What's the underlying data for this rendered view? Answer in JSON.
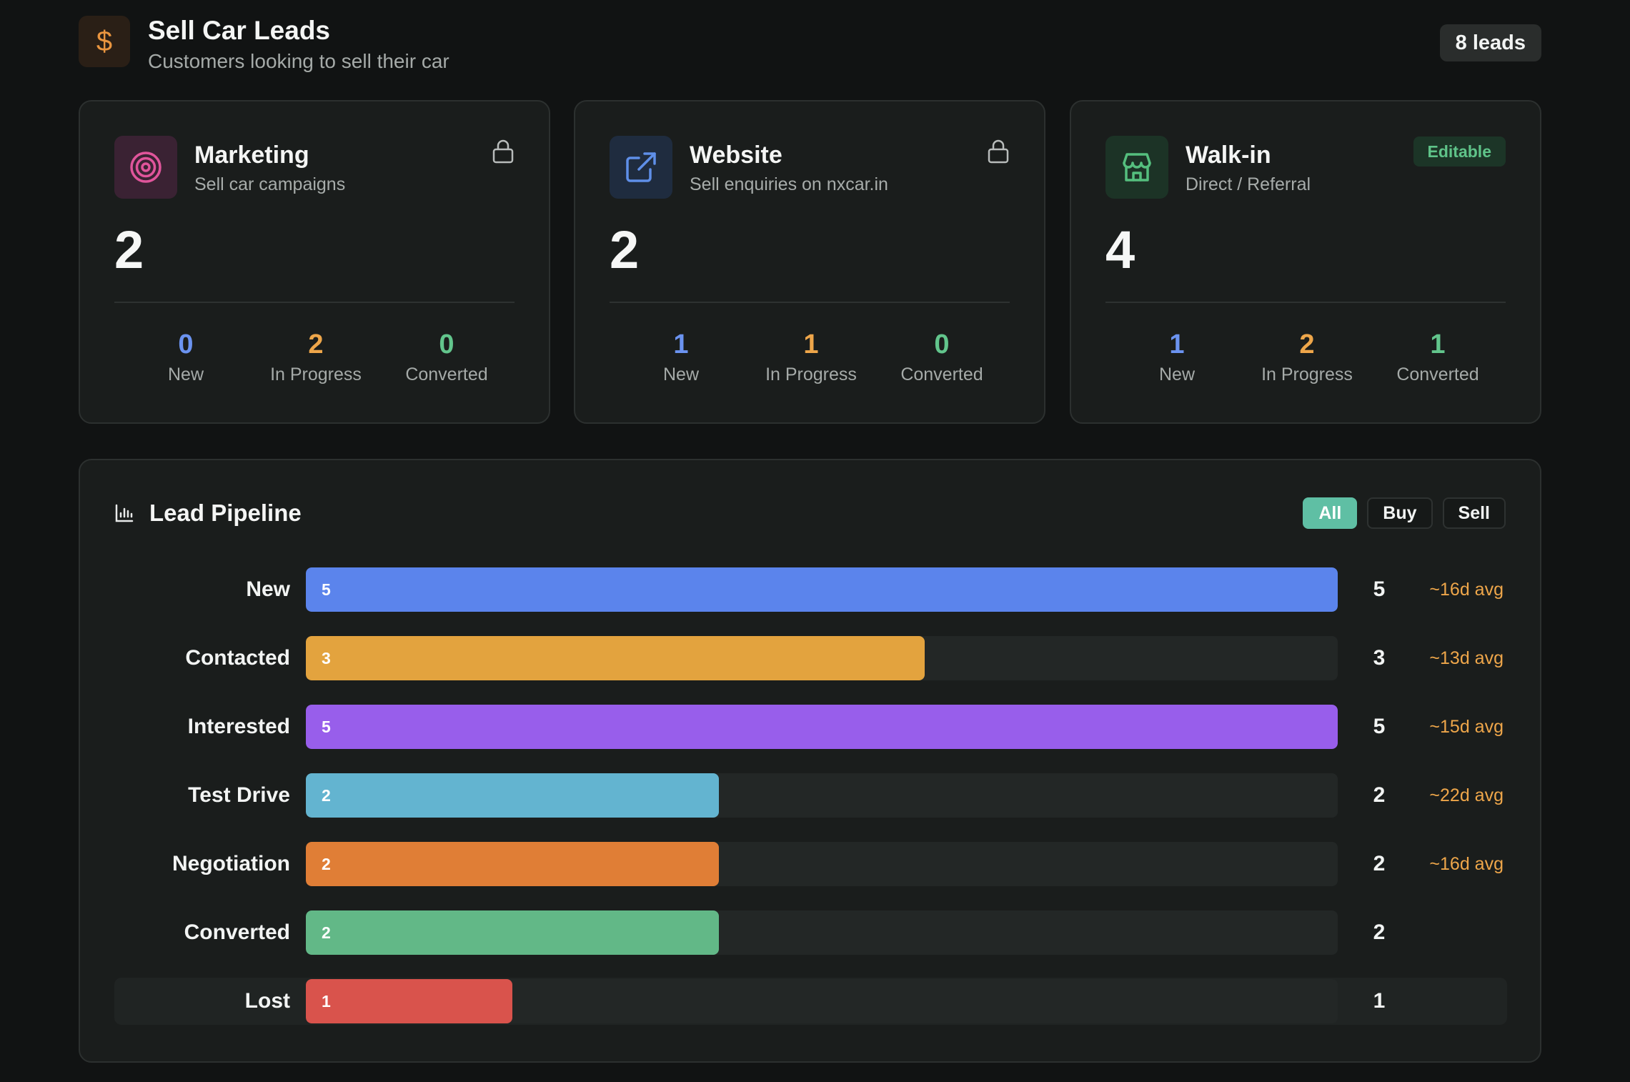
{
  "header": {
    "icon": "dollar-icon",
    "title": "Sell Car Leads",
    "subtitle": "Customers looking to sell their car",
    "leads_badge": "8 leads"
  },
  "sources": [
    {
      "name": "Marketing",
      "description": "Sell car campaigns",
      "icon": "target-icon",
      "locked": true,
      "total": "2",
      "stats": [
        {
          "value": "0",
          "label": "New"
        },
        {
          "value": "2",
          "label": "In Progress"
        },
        {
          "value": "0",
          "label": "Converted"
        }
      ]
    },
    {
      "name": "Website",
      "description": "Sell enquiries on nxcar.in",
      "icon": "external-link-icon",
      "locked": true,
      "total": "2",
      "stats": [
        {
          "value": "1",
          "label": "New"
        },
        {
          "value": "1",
          "label": "In Progress"
        },
        {
          "value": "0",
          "label": "Converted"
        }
      ]
    },
    {
      "name": "Walk-in",
      "description": "Direct / Referral",
      "icon": "store-icon",
      "badge": "Editable",
      "total": "4",
      "stats": [
        {
          "value": "1",
          "label": "New"
        },
        {
          "value": "2",
          "label": "In Progress"
        },
        {
          "value": "1",
          "label": "Converted"
        }
      ]
    }
  ],
  "pipeline": {
    "title": "Lead Pipeline",
    "icon": "bar-chart-icon",
    "filters": [
      "All",
      "Buy",
      "Sell"
    ],
    "active_filter": "All",
    "max": 5,
    "stages": [
      {
        "label": "New",
        "value": "5",
        "avg": "~16d avg",
        "color": "#5b84ec"
      },
      {
        "label": "Contacted",
        "value": "3",
        "avg": "~13d avg",
        "color": "#e3a33e"
      },
      {
        "label": "Interested",
        "value": "5",
        "avg": "~15d avg",
        "color": "#985eeb"
      },
      {
        "label": "Test Drive",
        "value": "2",
        "avg": "~22d avg",
        "color": "#63b4d0"
      },
      {
        "label": "Negotiation",
        "value": "2",
        "avg": "~16d avg",
        "color": "#e07e36"
      },
      {
        "label": "Converted",
        "value": "2",
        "avg": "",
        "color": "#62b887"
      },
      {
        "label": "Lost",
        "value": "1",
        "avg": "",
        "color": "#d9534c"
      }
    ]
  }
}
